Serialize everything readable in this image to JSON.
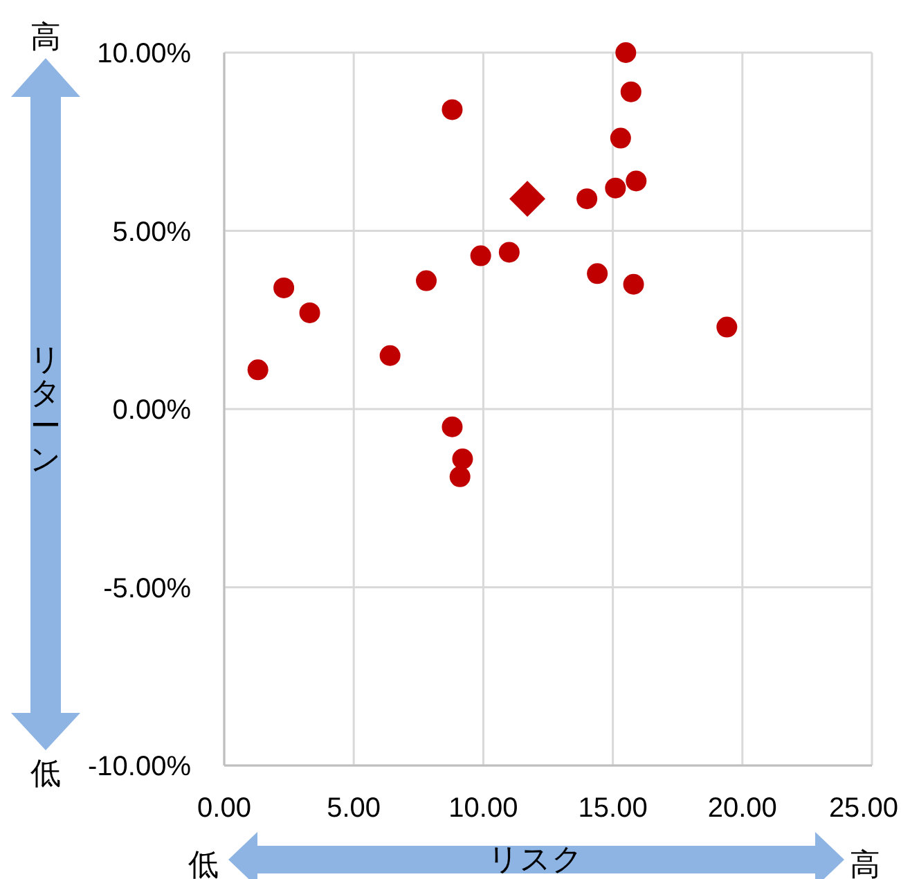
{
  "chart_data": {
    "type": "scatter",
    "xlabel": "リスク",
    "ylabel": "リターン",
    "annotations": [
      "高",
      "低",
      "低",
      "高"
    ],
    "xlim": [
      0,
      25
    ],
    "ylim": [
      -10,
      10
    ],
    "xticks": [
      {
        "value": 0,
        "label": "0.00"
      },
      {
        "value": 5,
        "label": "5.00"
      },
      {
        "value": 10,
        "label": "10.00"
      },
      {
        "value": 15,
        "label": "15.00"
      },
      {
        "value": 20,
        "label": "20.00"
      },
      {
        "value": 25,
        "label": "25.00"
      }
    ],
    "yticks": [
      {
        "value": -10,
        "label": "-10.00%"
      },
      {
        "value": -5,
        "label": "-5.00%"
      },
      {
        "value": 0,
        "label": "0.00%"
      },
      {
        "value": 5,
        "label": "5.00%"
      },
      {
        "value": 10,
        "label": "10.00%"
      }
    ],
    "grid": true,
    "series": [
      {
        "marker": "circle",
        "color": "#c00000",
        "x": [
          1.3,
          2.3,
          3.3,
          6.4,
          7.8,
          8.8,
          8.8,
          9.2,
          9.1,
          9.9,
          11.0,
          14.0,
          14.4,
          15.1,
          15.3,
          15.5,
          15.7,
          15.8,
          15.9,
          19.4
        ],
        "values": [
          1.1,
          3.4,
          2.7,
          1.5,
          3.6,
          8.4,
          -0.5,
          -1.4,
          -1.9,
          4.3,
          4.4,
          5.9,
          3.8,
          6.2,
          7.6,
          10.0,
          8.9,
          3.5,
          6.4,
          2.3
        ]
      },
      {
        "marker": "diamond",
        "color": "#c00000",
        "x": [
          11.7
        ],
        "values": [
          5.9
        ]
      }
    ]
  }
}
